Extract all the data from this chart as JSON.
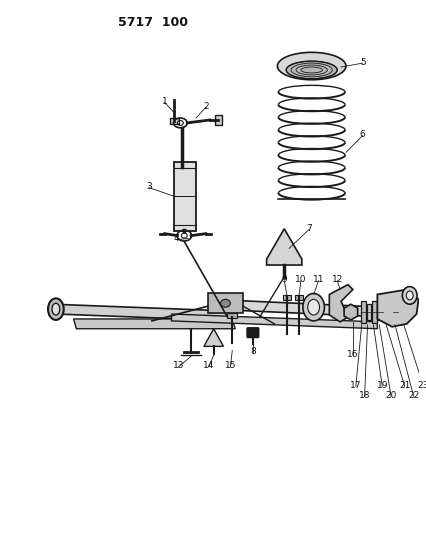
{
  "title": "5717 100",
  "bg_color": "#ffffff",
  "line_color": "#1a1a1a",
  "text_color": "#111111",
  "figsize": [
    4.27,
    5.33
  ],
  "dpi": 100
}
